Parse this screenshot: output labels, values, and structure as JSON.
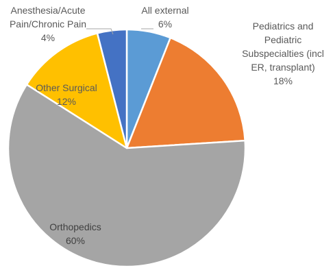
{
  "chart_data": {
    "type": "pie",
    "title": "",
    "unit": "%",
    "slices": [
      {
        "label_lines": [
          "All external",
          "6%"
        ],
        "category": "All external",
        "value": 6,
        "value_label": "6%",
        "color": "#5B9BD5",
        "label_color": "#595959"
      },
      {
        "label_lines": [
          "Pediatrics and",
          "Pediatric",
          "Subspecialties (incl",
          "ER, transplant)",
          "18%"
        ],
        "category": "Pediatrics and Pediatric Subspecialties (incl ER, transplant)",
        "value": 18,
        "value_label": "18%",
        "color": "#ED7D31",
        "label_color": "#595959"
      },
      {
        "label_lines": [
          "Orthopedics",
          "60%"
        ],
        "category": "Orthopedics",
        "value": 60,
        "value_label": "60%",
        "color": "#A5A5A5",
        "label_color": "#404040"
      },
      {
        "label_lines": [
          "Other Surgical",
          "12%"
        ],
        "category": "Other Surgical",
        "value": 12,
        "value_label": "12%",
        "color": "#FFC000",
        "label_color": "#595959"
      },
      {
        "label_lines": [
          "Anesthesia/Acute",
          "Pain/Chronic Pain",
          "4%"
        ],
        "category": "Anesthesia/Acute Pain/Chronic Pain",
        "value": 4,
        "value_label": "4%",
        "color": "#4472C4",
        "label_color": "#595959"
      }
    ]
  }
}
